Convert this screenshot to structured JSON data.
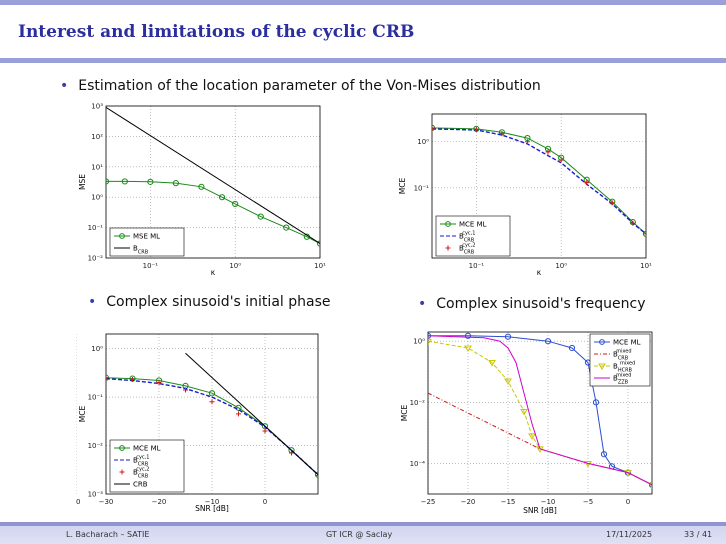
{
  "slide": {
    "title": "Interest and limitations of the cyclic CRB",
    "bullet_main": "Estimation of the location parameter of the Von-Mises distribution",
    "bullet_phase": "Complex sinusoid's initial phase",
    "bullet_freq": "Complex sinusoid's frequency"
  },
  "footer": {
    "author": "L. Bacharach – SATIE",
    "event": "GT ICR @ Saclay",
    "date": "17/11/2025",
    "page": "33 / 41"
  },
  "colors": {
    "title": "#2b2f9e",
    "bar": "#9aa0d8",
    "mcl_green": "#1a8a1a",
    "bound_blue": "#1a1ad0",
    "bound_red": "#d01a1a",
    "mcl_blue": "#2a4fd0",
    "bound_yellow": "#c8c800",
    "bound_magenta": "#d000d0"
  },
  "chart_data": [
    {
      "type": "line",
      "xscale": "log",
      "yscale": "log",
      "xlabel": "κ",
      "ylabel": "MSE",
      "xlim": [
        0.03,
        10
      ],
      "ylim": [
        0.01,
        1000
      ],
      "xticks": [
        "10⁻¹",
        "10⁰",
        "10¹"
      ],
      "yticks": [
        "10⁻²",
        "10⁻¹",
        "10⁰",
        "10¹",
        "10²",
        "10³"
      ],
      "legend_position": "bottom-left",
      "series": [
        {
          "name": "MSE ML",
          "style": "circles-solid",
          "x": [
            0.03,
            0.05,
            0.1,
            0.2,
            0.4,
            0.7,
            1,
            2,
            4,
            7,
            10
          ],
          "y": [
            3.3,
            3.3,
            3.2,
            2.9,
            2.2,
            1.0,
            0.6,
            0.23,
            0.1,
            0.05,
            0.03
          ]
        },
        {
          "name": "B_CRB",
          "style": "solid",
          "x": [
            0.03,
            10
          ],
          "y": [
            900,
            0.03
          ]
        }
      ]
    },
    {
      "type": "line",
      "xscale": "log",
      "yscale": "log",
      "xlabel": "κ",
      "ylabel": "MCE",
      "xlim": [
        0.03,
        10
      ],
      "ylim": [
        0.003,
        4
      ],
      "xticks": [
        "10⁻¹",
        "10⁰",
        "10¹"
      ],
      "yticks": [
        "10⁻¹",
        "10⁰"
      ],
      "legend_position": "bottom-left",
      "series": [
        {
          "name": "MCE ML",
          "style": "circles-solid",
          "x": [
            0.03,
            0.1,
            0.2,
            0.4,
            0.7,
            1,
            2,
            4,
            7,
            10
          ],
          "y": [
            2.0,
            1.9,
            1.6,
            1.2,
            0.7,
            0.45,
            0.15,
            0.05,
            0.018,
            0.01
          ]
        },
        {
          "name": "B_CRB^{cyc,1}",
          "style": "dashed",
          "x": [
            0.03,
            0.1,
            0.2,
            0.4,
            0.7,
            1,
            2,
            4,
            7,
            10
          ],
          "y": [
            1.9,
            1.8,
            1.4,
            0.9,
            0.5,
            0.35,
            0.12,
            0.045,
            0.017,
            0.01
          ]
        },
        {
          "name": "B_CRB^{cyc,2}",
          "style": "plus",
          "x": [
            0.03,
            0.1,
            0.2,
            0.4,
            0.7,
            1,
            2,
            4,
            7,
            10
          ],
          "y": [
            1.9,
            1.85,
            1.5,
            1.0,
            0.6,
            0.4,
            0.13,
            0.047,
            0.017,
            0.01
          ]
        }
      ]
    },
    {
      "type": "line",
      "yscale": "log",
      "xlabel": "SNR [dB]",
      "ylabel": "MCE",
      "xlim": [
        -30,
        10
      ],
      "ylim": [
        0.001,
        2
      ],
      "xticks": [
        "−30",
        "−20",
        "−10",
        "0",
        "10"
      ],
      "yticks": [
        "10⁻³",
        "10⁻²",
        "10⁻¹",
        "10⁰"
      ],
      "legend_position": "bottom-left",
      "series": [
        {
          "name": "MCE ML",
          "style": "circles-solid",
          "x": [
            -30,
            -25,
            -20,
            -15,
            -10,
            -5,
            0,
            5,
            10
          ],
          "y": [
            0.25,
            0.24,
            0.22,
            0.17,
            0.12,
            0.06,
            0.025,
            0.008,
            0.0025
          ]
        },
        {
          "name": "B_CRB^{cyc,1}",
          "style": "dashed",
          "x": [
            -30,
            -25,
            -20,
            -15,
            -10,
            -5,
            0,
            5,
            10
          ],
          "y": [
            0.24,
            0.22,
            0.19,
            0.15,
            0.1,
            0.055,
            0.024,
            0.008,
            0.0025
          ]
        },
        {
          "name": "B_CRB^{cyc,2}",
          "style": "plus",
          "x": [
            -30,
            -25,
            -20,
            -15,
            -10,
            -5,
            0,
            5,
            10
          ],
          "y": [
            0.25,
            0.23,
            0.2,
            0.14,
            0.08,
            0.045,
            0.02,
            0.007,
            0.0024
          ]
        },
        {
          "name": "CRB",
          "style": "solid",
          "x": [
            -15,
            10
          ],
          "y": [
            0.8,
            0.0025
          ]
        }
      ]
    },
    {
      "type": "line",
      "yscale": "log",
      "xlabel": "SNR [dB]",
      "ylabel": "MCE",
      "xlim": [
        -25,
        3
      ],
      "ylim": [
        1e-05,
        2
      ],
      "xticks": [
        "−25",
        "−20",
        "−15",
        "−10",
        "−5",
        "0"
      ],
      "yticks": [
        "10⁻⁴",
        "10⁻²",
        "10⁰"
      ],
      "legend_position": "top-right",
      "series": [
        {
          "name": "MCE ML",
          "style": "circles-solid",
          "x": [
            -25,
            -20,
            -15,
            -10,
            -7,
            -5,
            -4,
            -3,
            -2,
            0,
            3
          ],
          "y": [
            1.5,
            1.5,
            1.4,
            1.0,
            0.6,
            0.2,
            0.01,
            0.0002,
            8e-05,
            5e-05,
            2e-05
          ]
        },
        {
          "name": "B_CRB^{mixed}",
          "style": "dashdot",
          "x": [
            -25,
            -11,
            -5,
            0,
            3
          ],
          "y": [
            0.02,
            0.0003,
            0.0001,
            5e-05,
            2e-05
          ]
        },
        {
          "name": "B_HCRB^{mixed}",
          "style": "triangles-dashed",
          "x": [
            -25,
            -20,
            -17,
            -15,
            -13,
            -12,
            -11,
            -5,
            0,
            3
          ],
          "y": [
            1.0,
            0.6,
            0.2,
            0.05,
            0.005,
            0.0008,
            0.0003,
            0.0001,
            5e-05,
            2e-05
          ]
        },
        {
          "name": "B_ZZB^{mixed}",
          "style": "solid",
          "x": [
            -25,
            -18,
            -16,
            -15,
            -14,
            -12,
            -11,
            -10,
            -5,
            0,
            3
          ],
          "y": [
            1.5,
            1.3,
            1.0,
            0.6,
            0.2,
            0.002,
            0.0003,
            0.00025,
            0.0001,
            5e-05,
            2e-05
          ]
        }
      ]
    }
  ]
}
